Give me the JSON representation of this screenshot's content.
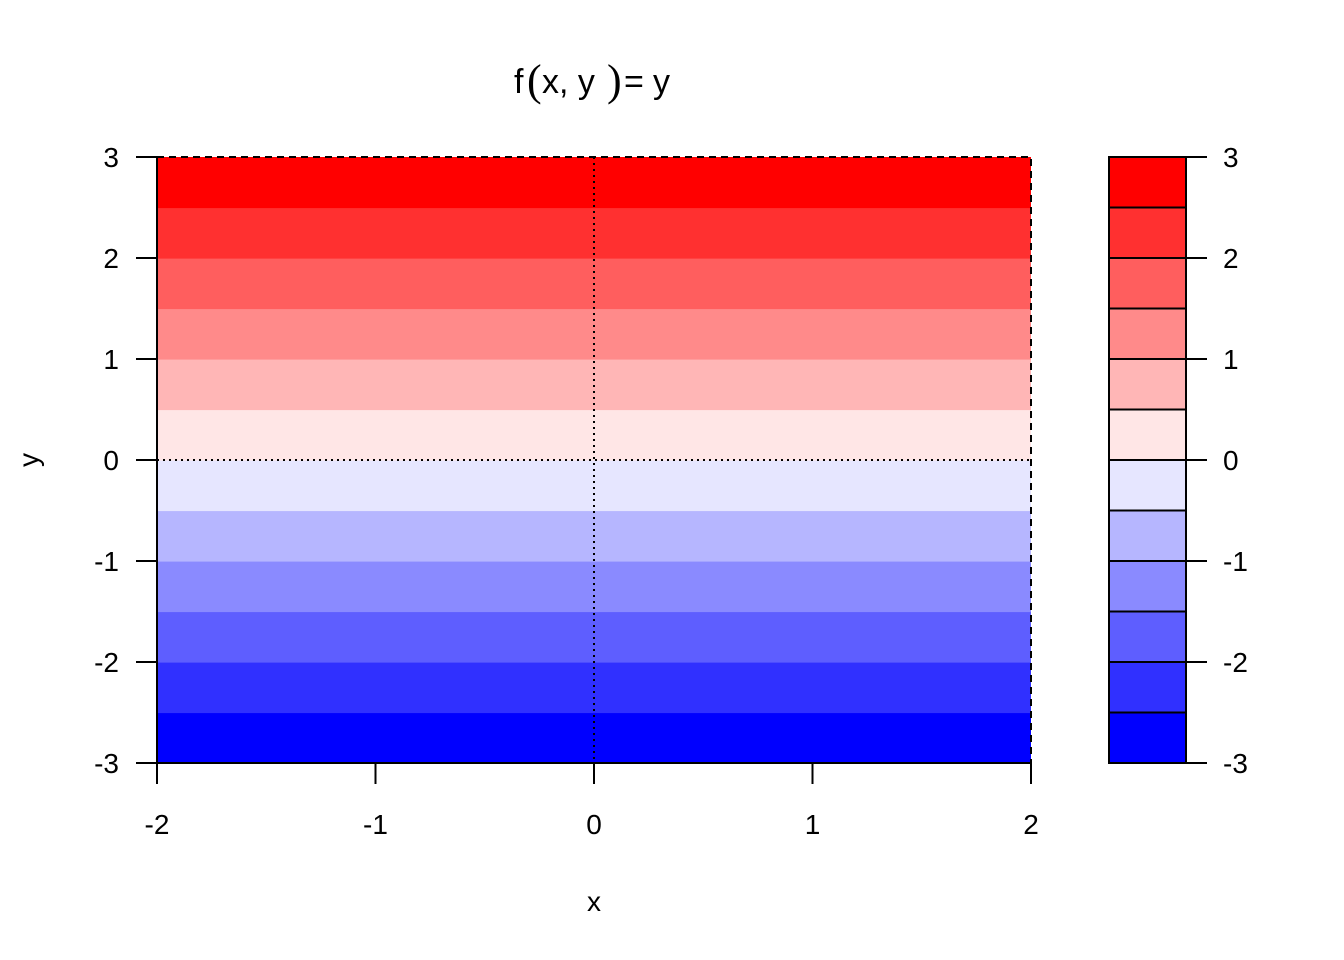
{
  "chart_data": {
    "type": "heatmap",
    "title": "f(x, y) = y",
    "title_parts": {
      "fname": "f",
      "open_paren": "(",
      "args": "x, y",
      "close_paren": ")",
      "equals": "=",
      "rhs": "y"
    },
    "xlabel": "x",
    "ylabel": "y",
    "xlim": [
      -2,
      2
    ],
    "ylim": [
      -3,
      3
    ],
    "x_ticks": [
      -2,
      -1,
      0,
      1,
      2
    ],
    "x_tick_labels": [
      "-2",
      "-1",
      "0",
      "1",
      "2"
    ],
    "y_ticks": [
      -3,
      -2,
      -1,
      0,
      1,
      2,
      3
    ],
    "y_tick_labels": [
      "-3",
      "-2",
      "-1",
      "0",
      "1",
      "2",
      "3"
    ],
    "reference_lines": {
      "x": 0,
      "y": 0,
      "style": "dotted"
    },
    "levels": [
      -3,
      -2.5,
      -2,
      -1.5,
      -1,
      -0.5,
      0,
      0.5,
      1,
      1.5,
      2,
      2.5,
      3
    ],
    "level_colors": [
      "#0000FF",
      "#3030FF",
      "#5E5EFF",
      "#8A8AFF",
      "#B6B6FF",
      "#E6E6FF",
      "#FFE6E6",
      "#FFB6B6",
      "#FF8A8A",
      "#FF5E5E",
      "#FF3030",
      "#FF0000"
    ],
    "colorbar": {
      "ticks": [
        -3,
        -2,
        -1,
        0,
        1,
        2,
        3
      ],
      "tick_labels": [
        "-3",
        "-2",
        "-1",
        "0",
        "1",
        "2",
        "3"
      ]
    }
  }
}
